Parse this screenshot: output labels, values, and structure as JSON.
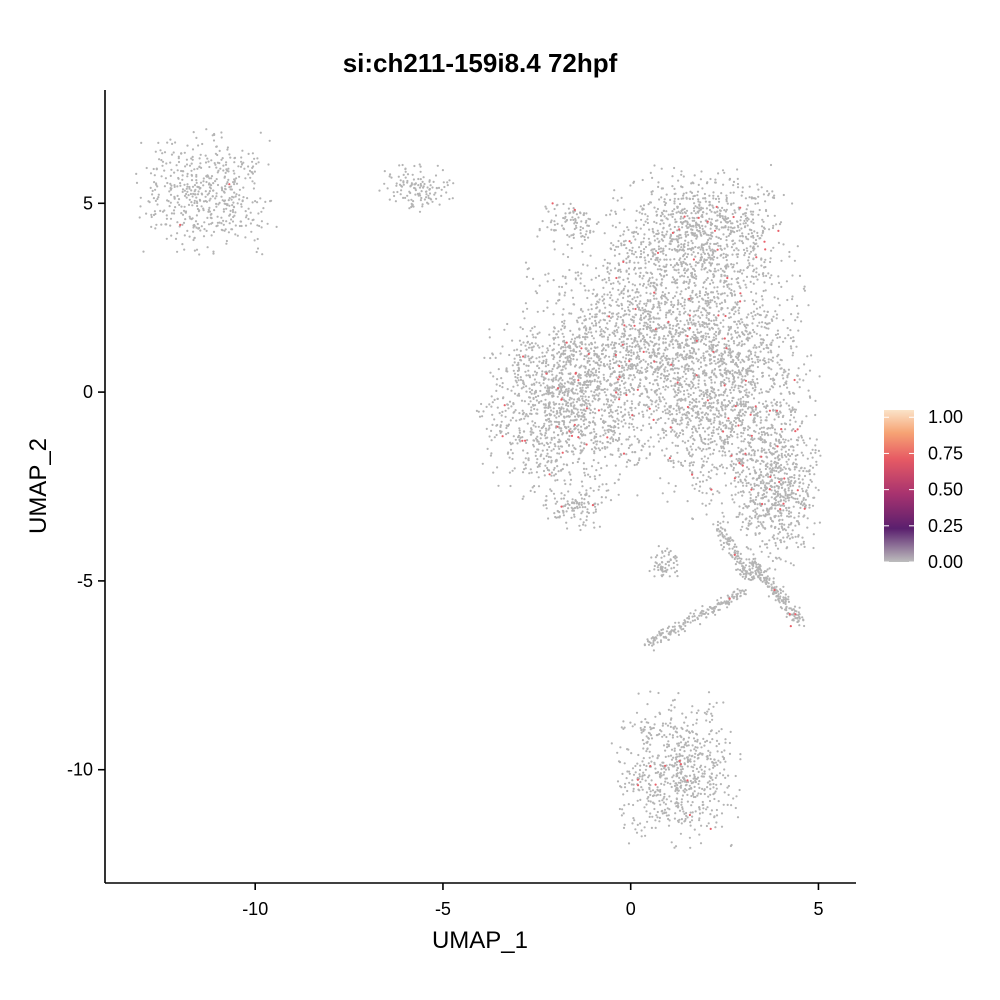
{
  "chart_data": {
    "type": "scatter",
    "title": "si:ch211-159i8.4 72hpf",
    "xlabel": "UMAP_1",
    "ylabel": "UMAP_2",
    "xlim": [
      -14,
      6
    ],
    "ylim": [
      -13,
      8
    ],
    "x_ticks": [
      -10,
      -5,
      0,
      5
    ],
    "y_ticks": [
      -10,
      -5,
      0,
      5
    ],
    "x_tick_labels": [
      "-10",
      "-5",
      "0",
      "5"
    ],
    "y_tick_labels": [
      "-10",
      "-5",
      "0",
      "5"
    ],
    "grid": false,
    "legend": {
      "placement": "right",
      "type": "colorbar",
      "range": [
        0,
        1.05
      ],
      "ticks": [
        0,
        0.25,
        0.5,
        0.75,
        1.0
      ],
      "tick_labels": [
        "0.00",
        "0.25",
        "0.50",
        "0.75",
        "1.00"
      ],
      "colors": [
        "#bdbdbd",
        "#5a1f6e",
        "#a8336f",
        "#e75b64",
        "#f6a374",
        "#fbe3c8"
      ]
    },
    "point_color": "#b4b4b4",
    "expressing_color": "#e8606a",
    "clusters": [
      {
        "cx": -11.3,
        "cy": 5.3,
        "sx": 0.85,
        "sy": 0.75,
        "n": 520
      },
      {
        "cx": -5.7,
        "cy": 5.4,
        "sx": 0.45,
        "sy": 0.3,
        "n": 130
      },
      {
        "cx": -1.6,
        "cy": 4.5,
        "sx": 0.4,
        "sy": 0.3,
        "n": 90
      },
      {
        "cx": 1.8,
        "cy": 4.2,
        "sx": 1.1,
        "sy": 0.8,
        "n": 900
      },
      {
        "cx": 0.9,
        "cy": 1.2,
        "sx": 1.7,
        "sy": 1.4,
        "n": 2200
      },
      {
        "cx": -1.8,
        "cy": -0.4,
        "sx": 1.0,
        "sy": 1.1,
        "n": 1100
      },
      {
        "cx": 2.8,
        "cy": -0.6,
        "sx": 1.0,
        "sy": 1.3,
        "n": 900
      },
      {
        "cx": 3.9,
        "cy": -2.7,
        "sx": 0.5,
        "sy": 0.9,
        "n": 550
      },
      {
        "cx": -1.5,
        "cy": -3.1,
        "sx": 0.4,
        "sy": 0.3,
        "n": 110
      },
      {
        "cx": 0.9,
        "cy": -4.6,
        "sx": 0.2,
        "sy": 0.25,
        "n": 60
      },
      {
        "cx": 1.2,
        "cy": -10.0,
        "sx": 0.75,
        "sy": 0.9,
        "n": 700
      }
    ],
    "arms": [
      {
        "x0": 0.4,
        "y0": -6.7,
        "x1": 3.0,
        "y1": -5.3,
        "n": 180
      },
      {
        "x0": 3.2,
        "y0": -4.5,
        "x1": 4.5,
        "y1": -6.1,
        "n": 180
      },
      {
        "x0": 2.3,
        "y0": -3.5,
        "x1": 3.2,
        "y1": -5.0,
        "n": 120
      }
    ]
  }
}
